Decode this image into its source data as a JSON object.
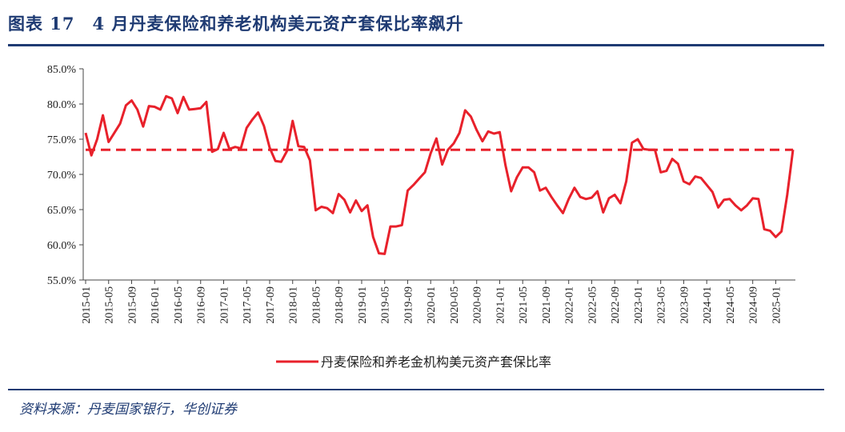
{
  "header": {
    "title": "图表 17　4 月丹麦保险和养老机构美元资产套保比率飙升"
  },
  "footer": {
    "source": "资料来源：丹麦国家银行，华创证券"
  },
  "colors": {
    "title": "#1f3b73",
    "series": "#e8212b",
    "axis": "#444444"
  },
  "chart_data": {
    "type": "line",
    "title": "",
    "xlabel": "",
    "ylabel": "",
    "ylim": [
      55,
      85
    ],
    "y_ticks": [
      55,
      60,
      65,
      70,
      75,
      80,
      85
    ],
    "y_tick_labels": [
      "55.0%",
      "60.0%",
      "65.0%",
      "70.0%",
      "75.0%",
      "80.0%",
      "85.0%"
    ],
    "x_tick_labels": [
      "2015-01",
      "2015-05",
      "2015-09",
      "2016-01",
      "2016-05",
      "2016-09",
      "2017-01",
      "2017-05",
      "2017-09",
      "2018-01",
      "2018-05",
      "2018-09",
      "2019-01",
      "2019-05",
      "2019-09",
      "2020-01",
      "2020-05",
      "2020-09",
      "2021-01",
      "2021-05",
      "2021-09",
      "2022-01",
      "2022-05",
      "2022-09",
      "2023-01",
      "2023-05",
      "2023-09",
      "2024-01",
      "2024-05",
      "2024-09",
      "2025-01"
    ],
    "legend_position": "bottom",
    "series": [
      {
        "name": "丹麦保险和养老金机构美元资产套保比率",
        "style": "solid",
        "x": [
          "2015-01",
          "2015-02",
          "2015-03",
          "2015-04",
          "2015-05",
          "2015-06",
          "2015-07",
          "2015-08",
          "2015-09",
          "2015-10",
          "2015-11",
          "2015-12",
          "2016-01",
          "2016-02",
          "2016-03",
          "2016-04",
          "2016-05",
          "2016-06",
          "2016-07",
          "2016-08",
          "2016-09",
          "2016-10",
          "2016-11",
          "2016-12",
          "2017-01",
          "2017-02",
          "2017-03",
          "2017-04",
          "2017-05",
          "2017-06",
          "2017-07",
          "2017-08",
          "2017-09",
          "2017-10",
          "2017-11",
          "2017-12",
          "2018-01",
          "2018-02",
          "2018-03",
          "2018-04",
          "2018-05",
          "2018-06",
          "2018-07",
          "2018-08",
          "2018-09",
          "2018-10",
          "2018-11",
          "2018-12",
          "2019-01",
          "2019-02",
          "2019-03",
          "2019-04",
          "2019-05",
          "2019-06",
          "2019-07",
          "2019-08",
          "2019-09",
          "2019-10",
          "2019-11",
          "2019-12",
          "2020-01",
          "2020-02",
          "2020-03",
          "2020-04",
          "2020-05",
          "2020-06",
          "2020-07",
          "2020-08",
          "2020-09",
          "2020-10",
          "2020-11",
          "2020-12",
          "2021-01",
          "2021-02",
          "2021-03",
          "2021-04",
          "2021-05",
          "2021-06",
          "2021-07",
          "2021-08",
          "2021-09",
          "2021-10",
          "2021-11",
          "2021-12",
          "2022-01",
          "2022-02",
          "2022-03",
          "2022-04",
          "2022-05",
          "2022-06",
          "2022-07",
          "2022-08",
          "2022-09",
          "2022-10",
          "2022-11",
          "2022-12",
          "2023-01",
          "2023-02",
          "2023-03",
          "2023-04",
          "2023-05",
          "2023-06",
          "2023-07",
          "2023-08",
          "2023-09",
          "2023-10",
          "2023-11",
          "2023-12",
          "2024-01",
          "2024-02",
          "2024-03",
          "2024-04",
          "2024-05",
          "2024-06",
          "2024-07",
          "2024-08",
          "2024-09",
          "2024-10",
          "2024-11",
          "2024-12",
          "2025-01",
          "2025-02",
          "2025-03",
          "2025-04"
        ],
        "values": [
          75.9,
          72.7,
          75.0,
          78.4,
          74.6,
          75.9,
          77.2,
          79.8,
          80.5,
          79.2,
          76.8,
          79.7,
          79.6,
          79.2,
          81.1,
          80.8,
          78.7,
          81.0,
          79.2,
          79.3,
          79.4,
          80.3,
          73.2,
          73.6,
          75.9,
          73.6,
          73.9,
          73.7,
          76.6,
          77.8,
          78.8,
          76.9,
          73.8,
          71.9,
          71.8,
          73.3,
          77.6,
          74.0,
          73.9,
          72.0,
          64.9,
          65.4,
          65.2,
          64.5,
          67.2,
          66.4,
          64.6,
          66.3,
          64.8,
          65.6,
          61.1,
          58.8,
          58.7,
          62.6,
          62.6,
          62.8,
          67.7,
          68.5,
          69.4,
          70.3,
          73.0,
          75.1,
          71.4,
          73.5,
          74.4,
          75.9,
          79.1,
          78.2,
          76.3,
          74.7,
          76.1,
          75.8,
          76.0,
          71.3,
          67.6,
          69.6,
          71.0,
          71.0,
          70.3,
          67.7,
          68.1,
          66.8,
          65.6,
          64.5,
          66.5,
          68.1,
          66.8,
          66.5,
          66.7,
          67.6,
          64.6,
          66.6,
          67.1,
          65.9,
          69.0,
          74.5,
          75.0,
          73.6,
          73.5,
          73.5,
          70.3,
          70.5,
          72.2,
          71.5,
          69.0,
          68.6,
          69.7,
          69.5,
          68.5,
          67.5,
          65.3,
          66.4,
          66.5,
          65.6,
          64.9,
          65.6,
          66.6,
          66.5,
          62.2,
          62.0,
          61.1,
          61.9,
          67.1,
          73.5
        ]
      },
      {
        "name": "",
        "style": "dashed",
        "values": [
          73.5
        ]
      }
    ]
  }
}
